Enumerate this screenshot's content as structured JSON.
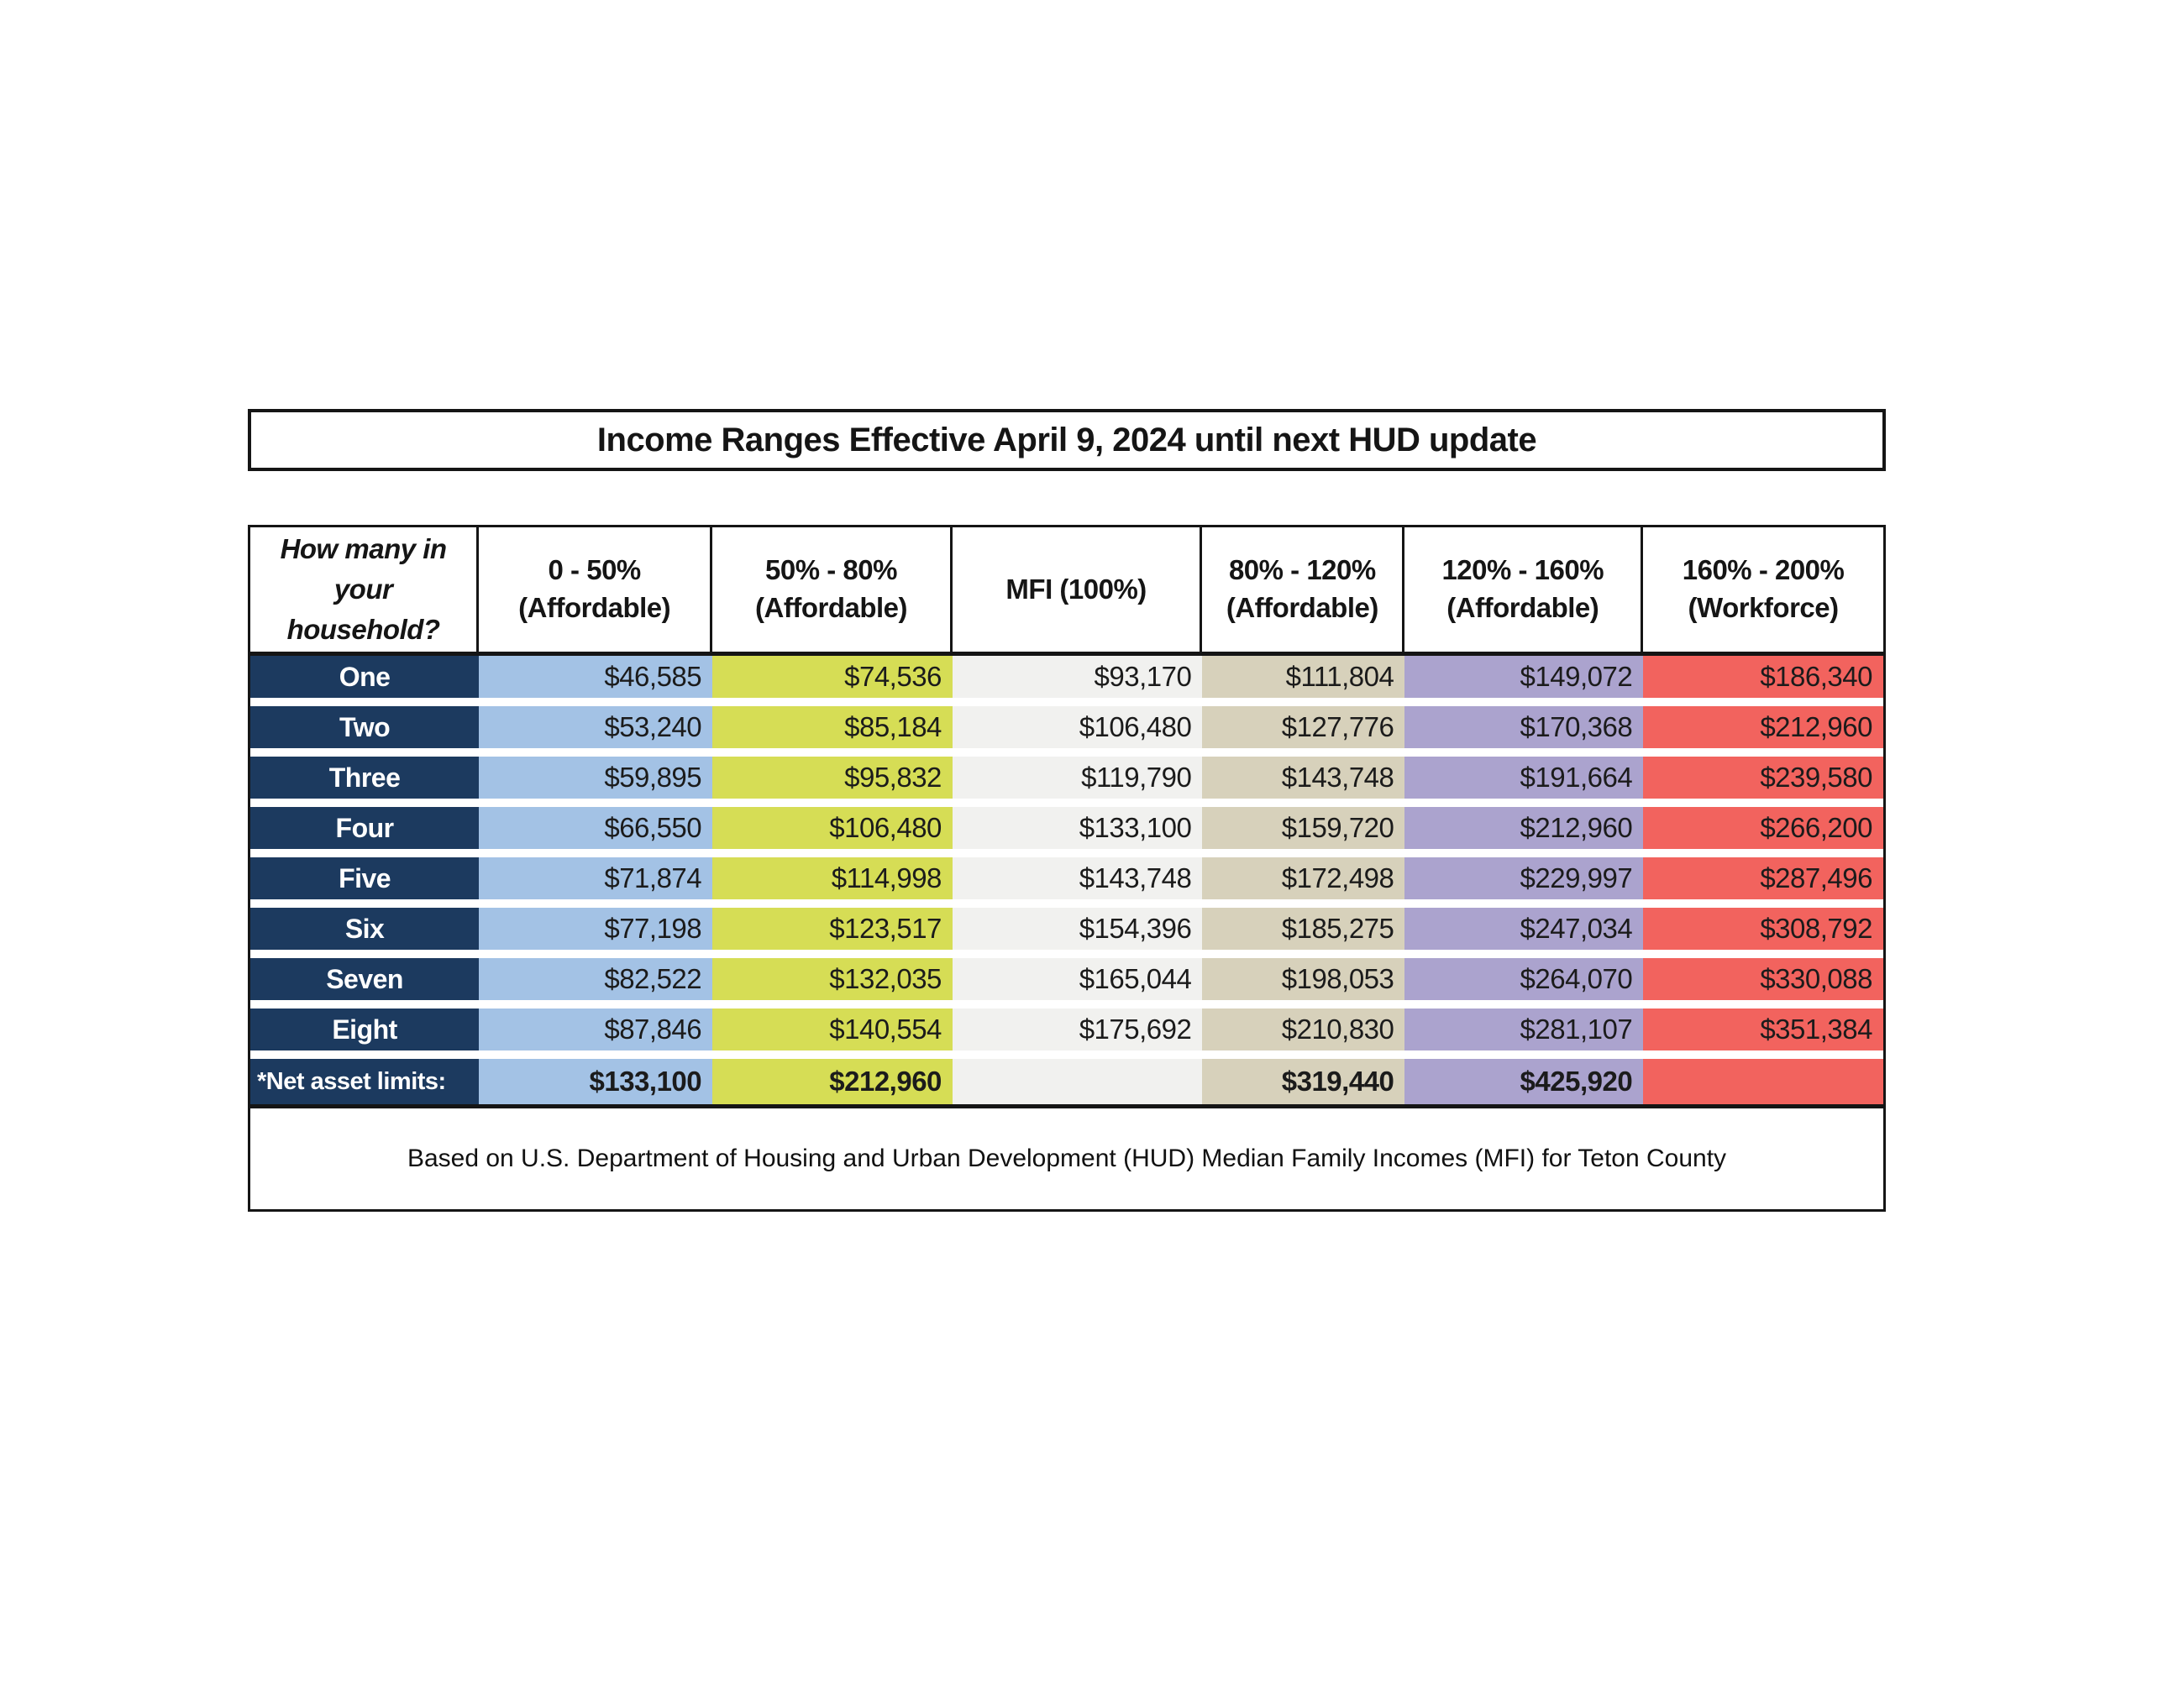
{
  "title": "Income Ranges Effective April 9, 2024 until next HUD update",
  "colors": {
    "row_label_bg": "#1C3A5F",
    "col_0_50": "#A3C2E5",
    "col_50_80": "#D6DD55",
    "col_mfi": "#F1F1EF",
    "col_80_120": "#D7D1BB",
    "col_120_160": "#ABA3CE",
    "col_160_200": "#F2635E",
    "border": "#151515"
  },
  "header": {
    "corner": "How many in your household?",
    "columns": [
      {
        "range": "0 - 50%",
        "category": "(Affordable)"
      },
      {
        "range": "50% - 80%",
        "category": "(Affordable)"
      },
      {
        "range": "MFI (100%)",
        "category": ""
      },
      {
        "range": "80% - 120%",
        "category": "(Affordable)"
      },
      {
        "range": "120% - 160%",
        "category": "(Affordable)"
      },
      {
        "range": "160% - 200%",
        "category": "(Workforce)"
      }
    ]
  },
  "rows": [
    {
      "label": "One",
      "values": [
        "$46,585",
        "$74,536",
        "$93,170",
        "$111,804",
        "$149,072",
        "$186,340"
      ]
    },
    {
      "label": "Two",
      "values": [
        "$53,240",
        "$85,184",
        "$106,480",
        "$127,776",
        "$170,368",
        "$212,960"
      ]
    },
    {
      "label": "Three",
      "values": [
        "$59,895",
        "$95,832",
        "$119,790",
        "$143,748",
        "$191,664",
        "$239,580"
      ]
    },
    {
      "label": "Four",
      "values": [
        "$66,550",
        "$106,480",
        "$133,100",
        "$159,720",
        "$212,960",
        "$266,200"
      ]
    },
    {
      "label": "Five",
      "values": [
        "$71,874",
        "$114,998",
        "$143,748",
        "$172,498",
        "$229,997",
        "$287,496"
      ]
    },
    {
      "label": "Six",
      "values": [
        "$77,198",
        "$123,517",
        "$154,396",
        "$185,275",
        "$247,034",
        "$308,792"
      ]
    },
    {
      "label": "Seven",
      "values": [
        "$82,522",
        "$132,035",
        "$165,044",
        "$198,053",
        "$264,070",
        "$330,088"
      ]
    },
    {
      "label": "Eight",
      "values": [
        "$87,846",
        "$140,554",
        "$175,692",
        "$210,830",
        "$281,107",
        "$351,384"
      ]
    }
  ],
  "net_asset_limits": {
    "label": "*Net asset limits:",
    "values": [
      "$133,100",
      "$212,960",
      "",
      "$319,440",
      "$425,920",
      ""
    ]
  },
  "footnote": "Based on U.S. Department of Housing and Urban Development (HUD) Median Family Incomes (MFI) for Teton County"
}
